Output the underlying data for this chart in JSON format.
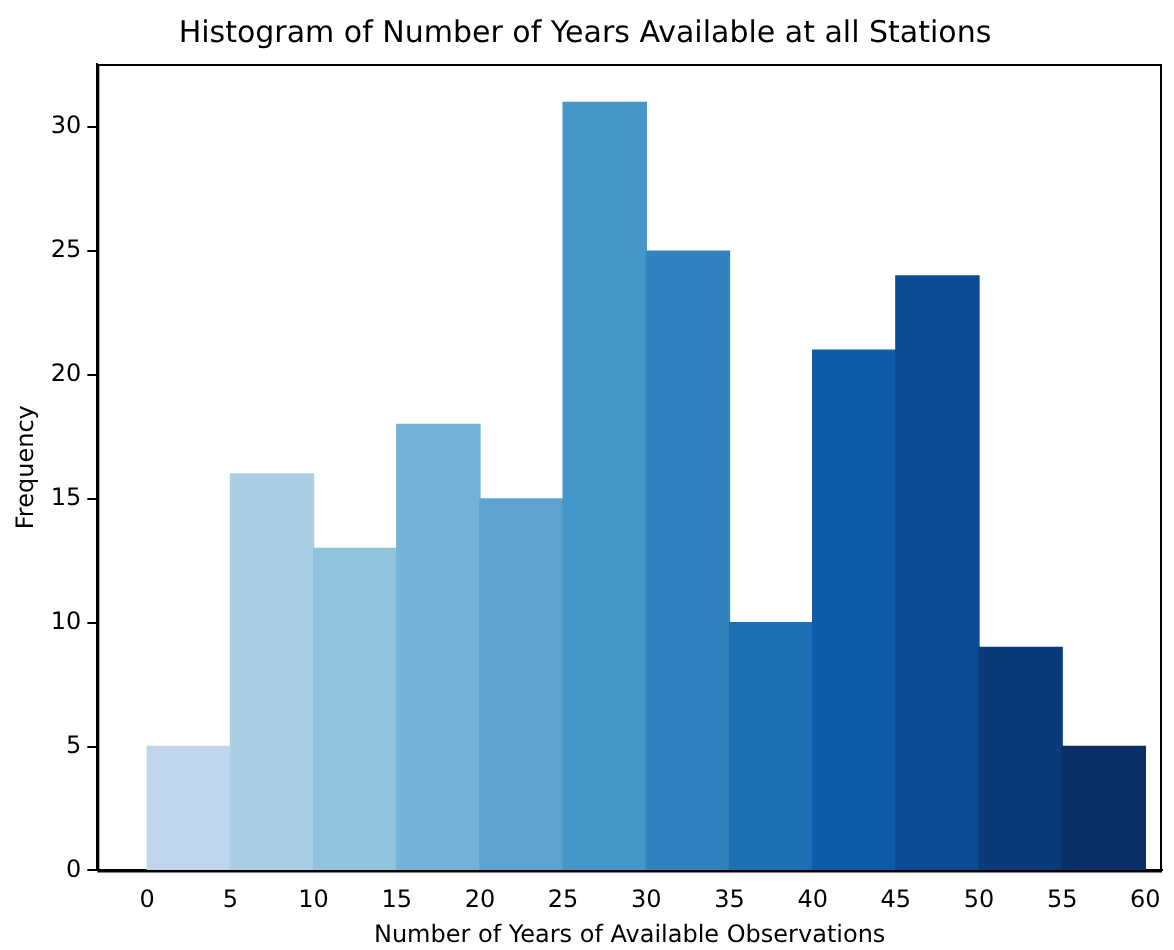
{
  "chart_data": {
    "type": "histogram",
    "title": "Histogram of Number of Years Available at all Stations",
    "xlabel": "Number of Years of Available Observations",
    "ylabel": "Frequency",
    "bins": [
      0,
      5,
      10,
      15,
      20,
      25,
      30,
      35,
      40,
      45,
      50,
      55,
      60
    ],
    "values": [
      5,
      16,
      13,
      18,
      15,
      31,
      25,
      10,
      21,
      24,
      9,
      5
    ],
    "colors": [
      "#c0d5eb",
      "#aacfe5",
      "#91c3df",
      "#74b2d8",
      "#5ca3d0",
      "#4597c9",
      "#3282bf",
      "#1f6fb3",
      "#0e5ca7",
      "#0a4b94",
      "#0a3a7a",
      "#0a2f67"
    ],
    "xlim": [
      -3,
      61
    ],
    "xticks": [
      0,
      5,
      10,
      15,
      20,
      25,
      30,
      35,
      40,
      45,
      50,
      55,
      60
    ],
    "ylim": [
      0,
      32.55
    ],
    "yticks": [
      0,
      5,
      10,
      15,
      20,
      25,
      30
    ],
    "grid": false,
    "legend": false
  }
}
